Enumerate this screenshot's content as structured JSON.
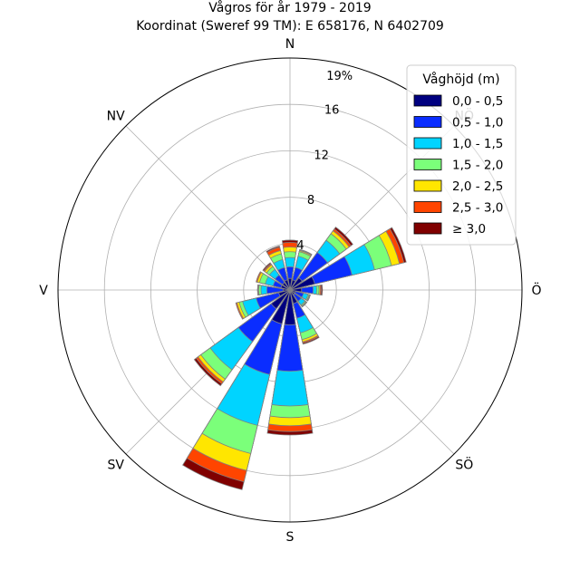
{
  "chart_data": {
    "type": "windrose",
    "title_lines": [
      "Vågros för år 1979 - 2019",
      "Koordinat (Sweref 99 TM): E 658176, N 6402709"
    ],
    "directions": [
      "N",
      "NNÖ",
      "NÖ",
      "ÖNÖ",
      "Ö",
      "ÖSÖ",
      "SÖ",
      "SSÖ",
      "S",
      "SSV",
      "SV",
      "VSV",
      "V",
      "VNV",
      "NV",
      "NNV"
    ],
    "compass_labels": [
      "N",
      "NV",
      "V",
      "SV",
      "S",
      "SÖ",
      "Ö",
      "NÖ"
    ],
    "radial_ticks": [
      "4",
      "8",
      "12",
      "16",
      "19%"
    ],
    "rmax": 20,
    "legend": {
      "title": "Våghöjd (m)",
      "position": "upper-right",
      "bins": [
        {
          "label": "0,0 - 0,5",
          "color": "#000080"
        },
        {
          "label": "0,5 - 1,0",
          "color": "#0a2dff"
        },
        {
          "label": "1,0 - 1,5",
          "color": "#00d4ff"
        },
        {
          "label": "1,5 - 2,0",
          "color": "#7bff7a"
        },
        {
          "label": "2,0 - 2,5",
          "color": "#ffe600"
        },
        {
          "label": "2,5 - 3,0",
          "color": "#ff4500"
        },
        {
          "label": "≥ 3,0",
          "color": "#800000"
        }
      ]
    },
    "series_cumulative": [
      [
        1.0,
        2.0,
        2.8,
        3.3,
        3.7,
        4.1,
        4.3
      ],
      [
        0.9,
        2.0,
        3.0,
        3.4,
        3.5,
        3.55,
        3.6
      ],
      [
        1.3,
        4.0,
        5.3,
        6.0,
        6.3,
        6.5,
        6.7
      ],
      [
        2.2,
        5.5,
        7.5,
        9.0,
        9.7,
        10.1,
        10.3
      ],
      [
        1.0,
        2.0,
        2.3,
        2.5,
        2.6,
        2.7,
        2.8
      ],
      [
        0.5,
        1.2,
        1.6,
        1.7,
        1.75,
        1.8,
        1.8
      ],
      [
        0.5,
        1.2,
        1.6,
        1.7,
        1.75,
        1.8,
        1.8
      ],
      [
        1.2,
        2.5,
        3.8,
        4.4,
        4.6,
        4.7,
        4.8
      ],
      [
        3.0,
        7.0,
        10.0,
        11.0,
        11.7,
        12.2,
        12.5
      ],
      [
        3.0,
        7.5,
        12.0,
        14.5,
        16.0,
        17.0,
        17.7
      ],
      [
        2.0,
        5.5,
        8.5,
        9.5,
        9.8,
        10.0,
        10.2
      ],
      [
        1.0,
        3.0,
        4.2,
        4.5,
        4.7,
        4.8,
        4.8
      ],
      [
        0.6,
        2.0,
        2.5,
        2.7,
        2.75,
        2.8,
        2.8
      ],
      [
        0.8,
        1.5,
        2.2,
        2.7,
        2.9,
        3.0,
        3.0
      ],
      [
        0.8,
        1.6,
        2.2,
        2.5,
        2.7,
        2.8,
        2.9
      ],
      [
        0.9,
        2.0,
        2.7,
        3.2,
        3.5,
        3.8,
        3.9
      ]
    ]
  }
}
